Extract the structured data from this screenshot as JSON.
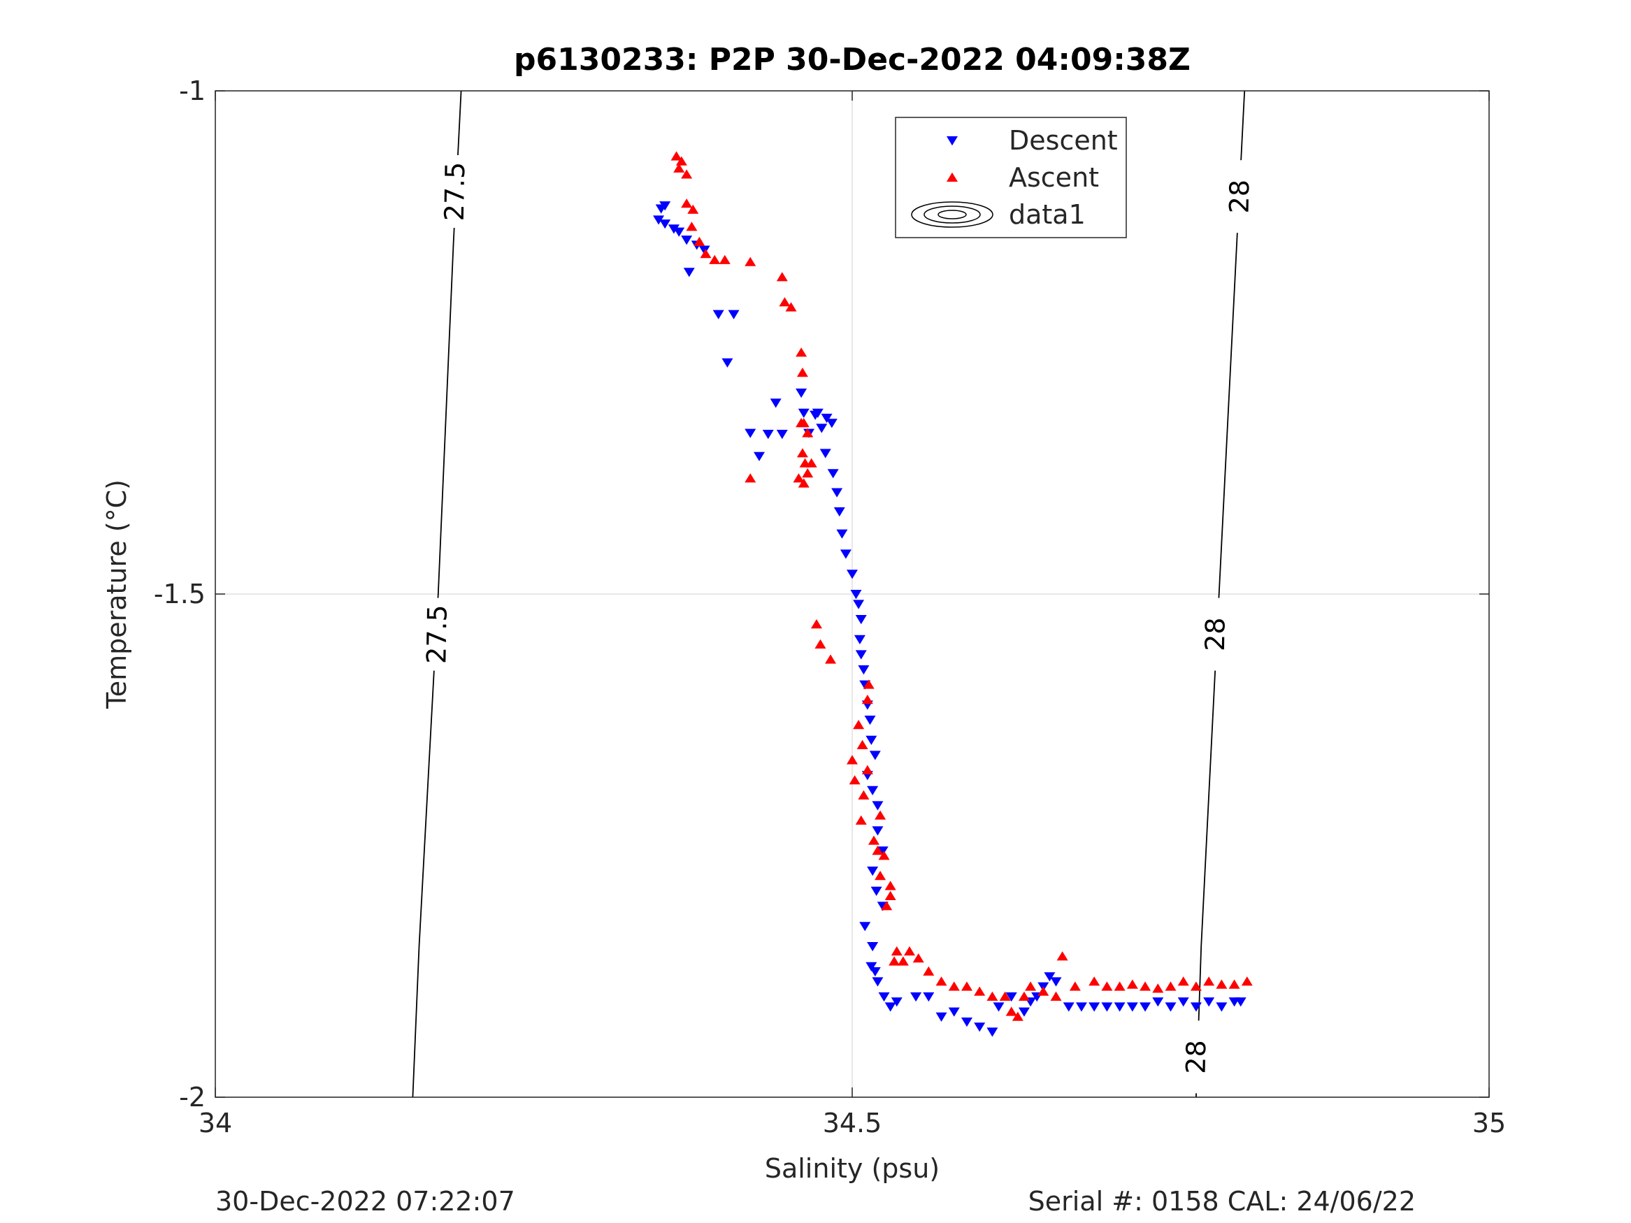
{
  "footer": {
    "left_text": "30-Dec-2022 07:22:07",
    "right_text": "Serial #: 0158  CAL: 24/06/22"
  },
  "chart_data": {
    "type": "scatter",
    "title": "p6130233: P2P 30-Dec-2022 04:09:38Z",
    "xlabel": "Salinity (psu)",
    "ylabel": "Temperature (°C)",
    "xlim": [
      34,
      35
    ],
    "ylim": [
      -2,
      -1
    ],
    "xticks": [
      34,
      34.5,
      35
    ],
    "xtick_labels": [
      "34",
      "34.5",
      "35"
    ],
    "yticks": [
      -2,
      -1.5,
      -1
    ],
    "ytick_labels": [
      "-2",
      "-1.5",
      "-1"
    ],
    "grid": true,
    "legend_position": "top-center",
    "legend": [
      {
        "label": "Descent",
        "marker": "triangle-down",
        "color": "#0000ff"
      },
      {
        "label": "Ascent",
        "marker": "triangle-up",
        "color": "#ff0000"
      },
      {
        "label": "data1",
        "marker": "contour",
        "color": "#000000"
      }
    ],
    "contours": [
      {
        "level": "27.5",
        "points": [
          [
            34.193,
            -1.0
          ],
          [
            34.187,
            -1.15
          ],
          [
            34.175,
            -1.5
          ],
          [
            34.16,
            -1.85
          ],
          [
            34.155,
            -2.0
          ]
        ],
        "labels": [
          [
            34.188,
            -1.1
          ],
          [
            34.174,
            -1.54
          ]
        ]
      },
      {
        "level": "28",
        "points": [
          [
            34.808,
            -1.0
          ],
          [
            34.802,
            -1.15
          ],
          [
            34.788,
            -1.5
          ],
          [
            34.774,
            -1.85
          ],
          [
            34.77,
            -2.0
          ]
        ],
        "labels": [
          [
            34.804,
            -1.105
          ],
          [
            34.785,
            -1.54
          ],
          [
            34.77,
            -1.96
          ]
        ]
      }
    ],
    "series": [
      {
        "name": "Descent",
        "marker": "triangle-down",
        "color": "#0000ff",
        "points": [
          [
            34.353,
            -1.114
          ],
          [
            34.35,
            -1.117
          ],
          [
            34.348,
            -1.128
          ],
          [
            34.353,
            -1.132
          ],
          [
            34.36,
            -1.137
          ],
          [
            34.364,
            -1.14
          ],
          [
            34.37,
            -1.148
          ],
          [
            34.378,
            -1.153
          ],
          [
            34.384,
            -1.158
          ],
          [
            34.372,
            -1.18
          ],
          [
            34.395,
            -1.222
          ],
          [
            34.407,
            -1.222
          ],
          [
            34.402,
            -1.27
          ],
          [
            34.42,
            -1.34
          ],
          [
            34.427,
            -1.363
          ],
          [
            34.44,
            -1.31
          ],
          [
            34.434,
            -1.341
          ],
          [
            34.445,
            -1.341
          ],
          [
            34.46,
            -1.3
          ],
          [
            34.462,
            -1.32
          ],
          [
            34.466,
            -1.34
          ],
          [
            34.471,
            -1.322
          ],
          [
            34.473,
            -1.32
          ],
          [
            34.476,
            -1.335
          ],
          [
            34.48,
            -1.325
          ],
          [
            34.484,
            -1.33
          ],
          [
            34.479,
            -1.36
          ],
          [
            34.485,
            -1.38
          ],
          [
            34.488,
            -1.399
          ],
          [
            34.49,
            -1.418
          ],
          [
            34.492,
            -1.44
          ],
          [
            34.495,
            -1.46
          ],
          [
            34.5,
            -1.48
          ],
          [
            34.503,
            -1.5
          ],
          [
            34.505,
            -1.51
          ],
          [
            34.507,
            -1.525
          ],
          [
            34.506,
            -1.545
          ],
          [
            34.507,
            -1.56
          ],
          [
            34.509,
            -1.575
          ],
          [
            34.51,
            -1.59
          ],
          [
            34.512,
            -1.61
          ],
          [
            34.514,
            -1.625
          ],
          [
            34.515,
            -1.645
          ],
          [
            34.518,
            -1.66
          ],
          [
            34.512,
            -1.68
          ],
          [
            34.516,
            -1.695
          ],
          [
            34.52,
            -1.71
          ],
          [
            34.52,
            -1.735
          ],
          [
            34.524,
            -1.755
          ],
          [
            34.516,
            -1.775
          ],
          [
            34.519,
            -1.795
          ],
          [
            34.524,
            -1.81
          ],
          [
            34.51,
            -1.83
          ],
          [
            34.516,
            -1.85
          ],
          [
            34.515,
            -1.87
          ],
          [
            34.518,
            -1.875
          ],
          [
            34.52,
            -1.885
          ],
          [
            34.525,
            -1.9
          ],
          [
            34.53,
            -1.91
          ],
          [
            34.535,
            -1.905
          ],
          [
            34.55,
            -1.9
          ],
          [
            34.56,
            -1.9
          ],
          [
            34.57,
            -1.92
          ],
          [
            34.58,
            -1.915
          ],
          [
            34.59,
            -1.925
          ],
          [
            34.6,
            -1.93
          ],
          [
            34.61,
            -1.935
          ],
          [
            34.615,
            -1.91
          ],
          [
            34.625,
            -1.9
          ],
          [
            34.635,
            -1.915
          ],
          [
            34.64,
            -1.905
          ],
          [
            34.645,
            -1.9
          ],
          [
            34.65,
            -1.89
          ],
          [
            34.655,
            -1.88
          ],
          [
            34.66,
            -1.885
          ],
          [
            34.67,
            -1.91
          ],
          [
            34.68,
            -1.91
          ],
          [
            34.69,
            -1.91
          ],
          [
            34.7,
            -1.91
          ],
          [
            34.71,
            -1.91
          ],
          [
            34.72,
            -1.91
          ],
          [
            34.73,
            -1.91
          ],
          [
            34.74,
            -1.905
          ],
          [
            34.75,
            -1.91
          ],
          [
            34.76,
            -1.905
          ],
          [
            34.77,
            -1.91
          ],
          [
            34.78,
            -1.905
          ],
          [
            34.79,
            -1.91
          ],
          [
            34.8,
            -1.905
          ],
          [
            34.805,
            -1.905
          ]
        ]
      },
      {
        "name": "Ascent",
        "marker": "triangle-up",
        "color": "#ff0000",
        "points": [
          [
            34.362,
            -1.065
          ],
          [
            34.366,
            -1.07
          ],
          [
            34.364,
            -1.077
          ],
          [
            34.37,
            -1.083
          ],
          [
            34.37,
            -1.112
          ],
          [
            34.375,
            -1.118
          ],
          [
            34.374,
            -1.135
          ],
          [
            34.38,
            -1.15
          ],
          [
            34.385,
            -1.162
          ],
          [
            34.392,
            -1.168
          ],
          [
            34.4,
            -1.168
          ],
          [
            34.42,
            -1.17
          ],
          [
            34.445,
            -1.185
          ],
          [
            34.447,
            -1.21
          ],
          [
            34.452,
            -1.215
          ],
          [
            34.46,
            -1.26
          ],
          [
            34.461,
            -1.28
          ],
          [
            34.462,
            -1.33
          ],
          [
            34.46,
            -1.33
          ],
          [
            34.465,
            -1.34
          ],
          [
            34.461,
            -1.36
          ],
          [
            34.463,
            -1.37
          ],
          [
            34.458,
            -1.385
          ],
          [
            34.465,
            -1.38
          ],
          [
            34.462,
            -1.39
          ],
          [
            34.468,
            -1.37
          ],
          [
            34.42,
            -1.385
          ],
          [
            34.472,
            -1.53
          ],
          [
            34.475,
            -1.55
          ],
          [
            34.483,
            -1.565
          ],
          [
            34.513,
            -1.59
          ],
          [
            34.512,
            -1.605
          ],
          [
            34.505,
            -1.63
          ],
          [
            34.508,
            -1.65
          ],
          [
            34.5,
            -1.665
          ],
          [
            34.502,
            -1.685
          ],
          [
            34.512,
            -1.675
          ],
          [
            34.509,
            -1.7
          ],
          [
            34.507,
            -1.725
          ],
          [
            34.522,
            -1.72
          ],
          [
            34.517,
            -1.745
          ],
          [
            34.52,
            -1.755
          ],
          [
            34.525,
            -1.76
          ],
          [
            34.522,
            -1.78
          ],
          [
            34.53,
            -1.79
          ],
          [
            34.53,
            -1.8
          ],
          [
            34.527,
            -1.81
          ],
          [
            34.535,
            -1.855
          ],
          [
            34.533,
            -1.865
          ],
          [
            34.54,
            -1.865
          ],
          [
            34.545,
            -1.855
          ],
          [
            34.552,
            -1.862
          ],
          [
            34.56,
            -1.875
          ],
          [
            34.57,
            -1.885
          ],
          [
            34.58,
            -1.89
          ],
          [
            34.59,
            -1.89
          ],
          [
            34.6,
            -1.895
          ],
          [
            34.61,
            -1.9
          ],
          [
            34.62,
            -1.9
          ],
          [
            34.625,
            -1.915
          ],
          [
            34.63,
            -1.92
          ],
          [
            34.635,
            -1.9
          ],
          [
            34.64,
            -1.89
          ],
          [
            34.65,
            -1.895
          ],
          [
            34.66,
            -1.9
          ],
          [
            34.665,
            -1.86
          ],
          [
            34.675,
            -1.89
          ],
          [
            34.69,
            -1.885
          ],
          [
            34.7,
            -1.89
          ],
          [
            34.71,
            -1.89
          ],
          [
            34.72,
            -1.888
          ],
          [
            34.73,
            -1.89
          ],
          [
            34.74,
            -1.892
          ],
          [
            34.75,
            -1.89
          ],
          [
            34.76,
            -1.885
          ],
          [
            34.77,
            -1.89
          ],
          [
            34.78,
            -1.885
          ],
          [
            34.79,
            -1.888
          ],
          [
            34.8,
            -1.888
          ],
          [
            34.81,
            -1.885
          ]
        ]
      }
    ]
  }
}
